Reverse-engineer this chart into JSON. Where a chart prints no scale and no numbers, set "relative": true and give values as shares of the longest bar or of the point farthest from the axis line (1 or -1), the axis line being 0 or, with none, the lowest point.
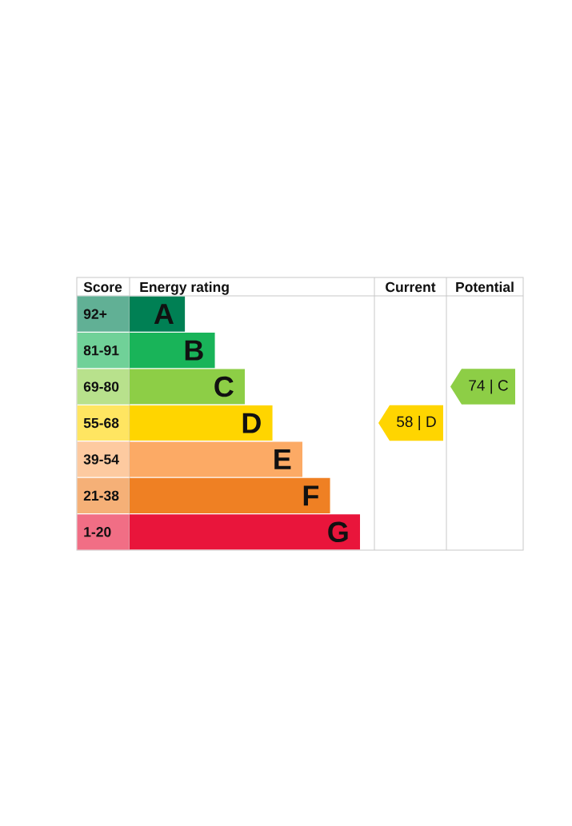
{
  "chart_data": {
    "type": "bar",
    "orientation": "horizontal",
    "relative": true,
    "categories": [
      "92+",
      "81-91",
      "69-80",
      "55-68",
      "39-54",
      "21-38",
      "1-20"
    ],
    "values": [
      0.24,
      0.37,
      0.5,
      0.62,
      0.75,
      0.87,
      1
    ],
    "colors": [
      "#008054",
      "#19b459",
      "#8dce46",
      "#ffd500",
      "#fcaa65",
      "#ef8023",
      "#e9153b"
    ],
    "annotations": [
      "Score",
      "Energy rating",
      "Current",
      "Potential",
      "58 | D",
      "74 | C",
      {
        "text": "A",
        "x": 0.24,
        "y": "92+"
      },
      {
        "text": "B",
        "x": 0.37,
        "y": "81-91"
      },
      {
        "text": "C",
        "x": 0.5,
        "y": "69-80"
      },
      {
        "text": "D",
        "x": 0.62,
        "y": "55-68"
      },
      {
        "text": "E",
        "x": 0.75,
        "y": "39-54"
      },
      {
        "text": "F",
        "x": 0.87,
        "y": "21-38"
      },
      {
        "text": "G",
        "x": 1,
        "y": "1-20"
      }
    ]
  }
}
